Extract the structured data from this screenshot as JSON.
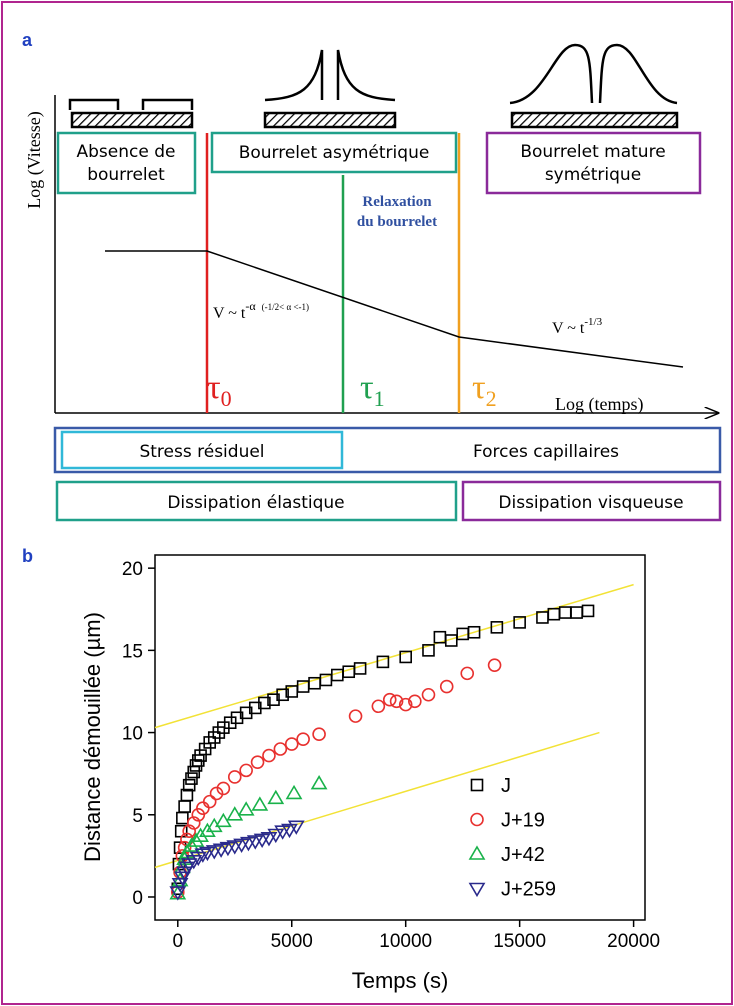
{
  "panel_a": {
    "label": "a",
    "y_axis_label": "Log (Vitesse)",
    "x_axis_label": "Log (temps)",
    "box_absence": [
      "Absence de",
      "bourrelet"
    ],
    "box_asymmetric": "Bourrelet asymétrique",
    "box_mature": [
      "Bourrelet mature",
      "symétrique"
    ],
    "relaxation": [
      "Relaxation",
      "du bourrelet"
    ],
    "taus": [
      {
        "symbol": "τ",
        "sub": "0"
      },
      {
        "symbol": "τ",
        "sub": "1"
      },
      {
        "symbol": "τ",
        "sub": "2"
      }
    ],
    "law_1": {
      "base": "V ~ t",
      "exponent": "-α",
      "condition": "(-1/2< α <-1)"
    },
    "law_2": {
      "base": "V ~ t",
      "exponent": "-1/3"
    },
    "stress": "Stress résiduel",
    "forces": "Forces capillaires",
    "elastic": "Dissipation élastique",
    "viscous": "Dissipation visqueuse"
  },
  "chart_data": {
    "type": "scatter",
    "panel_label": "b",
    "x_label": "Temps (s)",
    "y_label": "Distance démouillée (µm)",
    "xlim": [
      -1000,
      20500
    ],
    "ylim": [
      -1.4,
      20.8
    ],
    "xticks": [
      0,
      5000,
      10000,
      15000,
      20000
    ],
    "yticks": [
      0,
      5,
      10,
      15,
      20
    ],
    "series": [
      {
        "name": "J",
        "color": "#000000",
        "marker": "square",
        "x": [
          0,
          50,
          100,
          150,
          200,
          300,
          400,
          500,
          600,
          700,
          800,
          900,
          1000,
          1200,
          1400,
          1600,
          1800,
          2000,
          2300,
          2600,
          3000,
          3400,
          3800,
          4200,
          4600,
          5000,
          5500,
          6000,
          6500,
          7000,
          7500,
          8000,
          9000,
          10000,
          11000,
          11500,
          12000,
          12500,
          13000,
          14000,
          15000,
          16000,
          16500,
          17000,
          17500,
          18000
        ],
        "values": [
          0.5,
          2,
          3,
          4,
          4.8,
          5.5,
          6.2,
          6.8,
          7.2,
          7.6,
          8,
          8.3,
          8.6,
          9,
          9.4,
          9.7,
          10,
          10.3,
          10.6,
          10.9,
          11.2,
          11.5,
          11.8,
          12,
          12.3,
          12.5,
          12.8,
          13,
          13.2,
          13.5,
          13.7,
          13.9,
          14.3,
          14.6,
          15,
          15.8,
          15.6,
          16,
          16.1,
          16.4,
          16.7,
          17,
          17.2,
          17.3,
          17.3,
          17.4
        ]
      },
      {
        "name": "J+19",
        "color": "#e8312f",
        "marker": "circle",
        "x": [
          0,
          100,
          200,
          300,
          400,
          500,
          700,
          900,
          1100,
          1400,
          1700,
          2000,
          2500,
          3000,
          3500,
          4000,
          4500,
          5000,
          5500,
          6200,
          7800,
          8800,
          9300,
          9600,
          10000,
          10400,
          11000,
          11800,
          12700,
          13900
        ],
        "values": [
          0.3,
          1.5,
          2.5,
          3,
          3.5,
          4,
          4.5,
          5,
          5.4,
          5.8,
          6.3,
          6.6,
          7.3,
          7.7,
          8.2,
          8.6,
          9,
          9.3,
          9.6,
          9.9,
          11,
          11.6,
          12,
          11.9,
          11.7,
          11.9,
          12.3,
          12.8,
          13.6,
          14.1
        ]
      },
      {
        "name": "J+42",
        "color": "#19b24a",
        "marker": "triangle-up",
        "x": [
          0,
          100,
          200,
          300,
          400,
          600,
          800,
          1000,
          1300,
          1600,
          2000,
          2500,
          3000,
          3600,
          4300,
          5100,
          6200
        ],
        "values": [
          0.2,
          1,
          1.8,
          2.3,
          2.7,
          3.1,
          3.4,
          3.7,
          4,
          4.3,
          4.6,
          5,
          5.3,
          5.6,
          6,
          6.3,
          6.9
        ]
      },
      {
        "name": "J+259",
        "color": "#2a2a8c",
        "marker": "triangle-down",
        "x": [
          0,
          100,
          200,
          300,
          400,
          500,
          700,
          900,
          1100,
          1300,
          1600,
          1900,
          2200,
          2500,
          2800,
          3100,
          3400,
          3700,
          4000,
          4300,
          4600,
          4900,
          5200
        ],
        "values": [
          0.3,
          0.8,
          1.2,
          1.5,
          1.8,
          2,
          2.2,
          2.4,
          2.6,
          2.7,
          2.8,
          2.9,
          3,
          3.1,
          3.2,
          3.3,
          3.4,
          3.5,
          3.6,
          3.8,
          4,
          4.1,
          4.3
        ]
      }
    ],
    "fits": [
      {
        "color": "#f2e236",
        "x": [
          -1000,
          20000
        ],
        "y": [
          10.3,
          19
        ]
      },
      {
        "color": "#f2e236",
        "x": [
          -1000,
          18500
        ],
        "y": [
          1.8,
          10
        ]
      }
    ],
    "legend": "right"
  }
}
